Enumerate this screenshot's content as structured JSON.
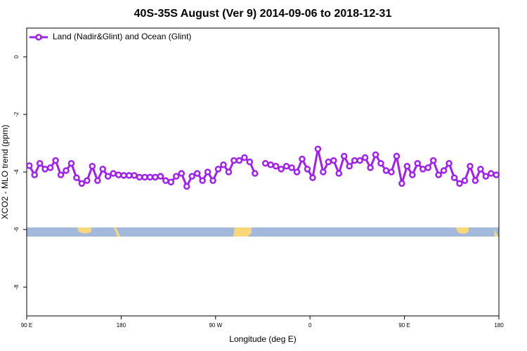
{
  "chart_data": {
    "type": "line",
    "title": "40S-35S August (Ver 9)   2014-09-06 to 2018-12-31",
    "x_label": "Longitude (deg E)",
    "y_label": "XCO2 - MLO trend (ppm)",
    "x": [
      92.5,
      97.5,
      102.5,
      107.5,
      112.5,
      117.5,
      122.5,
      127.5,
      132.5,
      137.5,
      142.5,
      147.5,
      152.5,
      157.5,
      162.5,
      167.5,
      172.5,
      177.5,
      182.5,
      187.5,
      192.5,
      197.5,
      202.5,
      207.5,
      212.5,
      217.5,
      222.5,
      227.5,
      232.5,
      237.5,
      242.5,
      247.5,
      252.5,
      257.5,
      262.5,
      267.5,
      272.5,
      277.5,
      282.5,
      287.5,
      292.5,
      297.5,
      302.5,
      307.5,
      312.5,
      317.5,
      322.5,
      327.5,
      332.5,
      337.5,
      342.5,
      347.5,
      352.5,
      357.5,
      362.5,
      367.5,
      372.5,
      377.5,
      382.5,
      387.5,
      392.5,
      397.5,
      402.5,
      407.5,
      412.5,
      417.5,
      422.5,
      427.5,
      432.5,
      437.5,
      442.5,
      447.5,
      452.5,
      457.5,
      462.5,
      467.5,
      472.5,
      477.5,
      482.5,
      487.5,
      492.5,
      497.5,
      502.5,
      507.5,
      512.5,
      517.5,
      522.5,
      527.5,
      532.5,
      537.5
    ],
    "series": [
      {
        "name": "Land (Nadir&Glint) and Ocean (Glint)",
        "color": "#a020f0",
        "values": [
          -3.78,
          -4.1,
          -3.7,
          -3.9,
          -3.85,
          -3.6,
          -4.1,
          -3.95,
          -3.7,
          -4.2,
          -4.4,
          -4.3,
          -3.8,
          -4.3,
          -3.9,
          -4.15,
          -4.05,
          -4.1,
          -4.12,
          -4.12,
          -4.12,
          -4.18,
          -4.18,
          -4.18,
          -4.18,
          -4.15,
          -4.3,
          -4.35,
          -4.15,
          -4.05,
          -4.5,
          -4.15,
          -4.05,
          -4.3,
          -4.0,
          -4.3,
          -3.9,
          -3.75,
          -4.0,
          -3.6,
          -3.6,
          -3.5,
          -3.65,
          -4.05,
          null,
          -3.7,
          -3.75,
          -3.8,
          -3.9,
          -3.8,
          -3.85,
          -4.0,
          -3.55,
          -3.9,
          -4.2,
          -3.2,
          -4.0,
          -3.65,
          -3.6,
          -4.05,
          -3.45,
          -3.8,
          -3.6,
          -3.6,
          -3.5,
          -3.85,
          -3.4,
          -3.7,
          -3.95,
          -4.0,
          -3.45,
          -4.4,
          -3.8,
          -4.1,
          -3.7,
          -3.9,
          -3.85,
          -3.6,
          -4.1,
          -3.95,
          -3.7,
          -4.2,
          -4.4,
          -4.3,
          -3.8,
          -4.3,
          -3.9,
          -4.15,
          -4.05,
          -4.1
        ]
      }
    ],
    "xlim": [
      90,
      540
    ],
    "xticks": [
      {
        "value": 90,
        "label": "90 E"
      },
      180,
      {
        "value": 270,
        "label": "90 W"
      },
      {
        "value": 360,
        "label": "0"
      },
      {
        "value": 450,
        "label": "90 E"
      },
      {
        "value": 540,
        "label": "180"
      }
    ],
    "ylim": [
      -9,
      1
    ],
    "yticks": [
      0,
      -2,
      -4,
      -6,
      -8
    ],
    "legend": "top-left"
  }
}
